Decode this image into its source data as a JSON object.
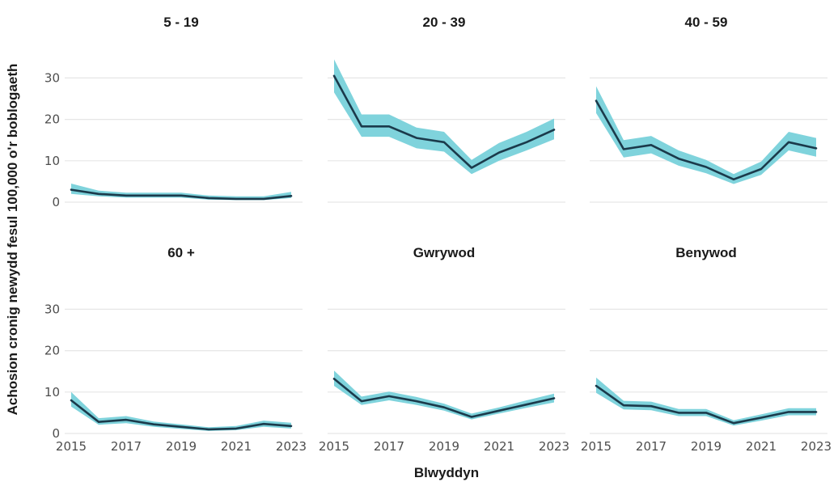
{
  "chart_data": {
    "type": "line",
    "ylabel": "Achosion cronig newydd fesul 100,000 o'r boblogaeth",
    "xlabel": "Blwyddyn",
    "x_ticks": [
      "2015",
      "2017",
      "2019",
      "2021",
      "2023"
    ],
    "y_ticks": [
      "0",
      "10",
      "20",
      "30"
    ],
    "xlim": [
      2015,
      2023
    ],
    "ylim": [
      -1.5,
      36
    ],
    "grid": "horizontal",
    "line_color": "#1b3a4b",
    "band_color": "#7fd3dc",
    "panels": [
      {
        "title": "5 - 19",
        "x": [
          2015,
          2016,
          2017,
          2018,
          2019,
          2020,
          2021,
          2022,
          2023
        ],
        "values": [
          3.0,
          2.0,
          1.6,
          1.6,
          1.6,
          1.0,
          0.8,
          0.8,
          1.5
        ],
        "lower": [
          2.0,
          1.4,
          1.1,
          1.1,
          1.1,
          0.6,
          0.5,
          0.5,
          1.0
        ],
        "upper": [
          4.5,
          2.8,
          2.3,
          2.3,
          2.3,
          1.6,
          1.4,
          1.4,
          2.5
        ]
      },
      {
        "title": "20 - 39",
        "x": [
          2015,
          2016,
          2017,
          2018,
          2019,
          2020,
          2021,
          2022,
          2023
        ],
        "values": [
          30.5,
          18.3,
          18.3,
          15.5,
          14.5,
          8.3,
          12.0,
          14.5,
          17.5
        ],
        "lower": [
          26.5,
          15.8,
          15.8,
          13.0,
          12.2,
          6.8,
          10.0,
          12.5,
          15.2
        ],
        "upper": [
          34.5,
          21.2,
          21.2,
          18.0,
          17.0,
          10.2,
          14.3,
          17.0,
          20.2
        ]
      },
      {
        "title": "40 - 59",
        "x": [
          2015,
          2016,
          2017,
          2018,
          2019,
          2020,
          2021,
          2022,
          2023
        ],
        "values": [
          24.5,
          12.8,
          13.8,
          10.5,
          8.5,
          5.5,
          8.0,
          14.5,
          13.0
        ],
        "lower": [
          21.5,
          10.8,
          11.8,
          8.8,
          7.0,
          4.4,
          6.6,
          12.5,
          11.0
        ],
        "upper": [
          28.0,
          15.0,
          16.0,
          12.5,
          10.2,
          6.8,
          9.8,
          17.0,
          15.5
        ]
      },
      {
        "title": "60 +",
        "x": [
          2015,
          2016,
          2017,
          2018,
          2019,
          2020,
          2021,
          2022,
          2023
        ],
        "values": [
          8.0,
          2.8,
          3.3,
          2.2,
          1.6,
          1.0,
          1.2,
          2.3,
          1.8
        ],
        "lower": [
          6.5,
          2.1,
          2.5,
          1.6,
          1.1,
          0.6,
          0.8,
          1.6,
          1.2
        ],
        "upper": [
          10.0,
          3.7,
          4.2,
          2.9,
          2.2,
          1.5,
          1.8,
          3.1,
          2.6
        ]
      },
      {
        "title": "Gwrywod",
        "x": [
          2015,
          2016,
          2017,
          2018,
          2019,
          2020,
          2021,
          2022,
          2023
        ],
        "values": [
          13.2,
          7.8,
          9.0,
          7.8,
          6.3,
          4.0,
          5.5,
          7.0,
          8.5
        ],
        "lower": [
          11.5,
          6.9,
          8.0,
          6.9,
          5.5,
          3.4,
          4.8,
          6.2,
          7.5
        ],
        "upper": [
          15.2,
          8.9,
          10.1,
          8.8,
          7.2,
          4.8,
          6.3,
          8.0,
          9.6
        ]
      },
      {
        "title": "Benywod",
        "x": [
          2015,
          2016,
          2017,
          2018,
          2019,
          2020,
          2021,
          2022,
          2023
        ],
        "values": [
          11.5,
          6.8,
          6.6,
          5.0,
          5.0,
          2.5,
          3.8,
          5.2,
          5.2
        ],
        "lower": [
          9.8,
          5.8,
          5.6,
          4.2,
          4.2,
          1.9,
          3.1,
          4.4,
          4.4
        ],
        "upper": [
          13.5,
          7.9,
          7.7,
          5.9,
          5.9,
          3.2,
          4.6,
          6.1,
          6.1
        ]
      }
    ]
  }
}
